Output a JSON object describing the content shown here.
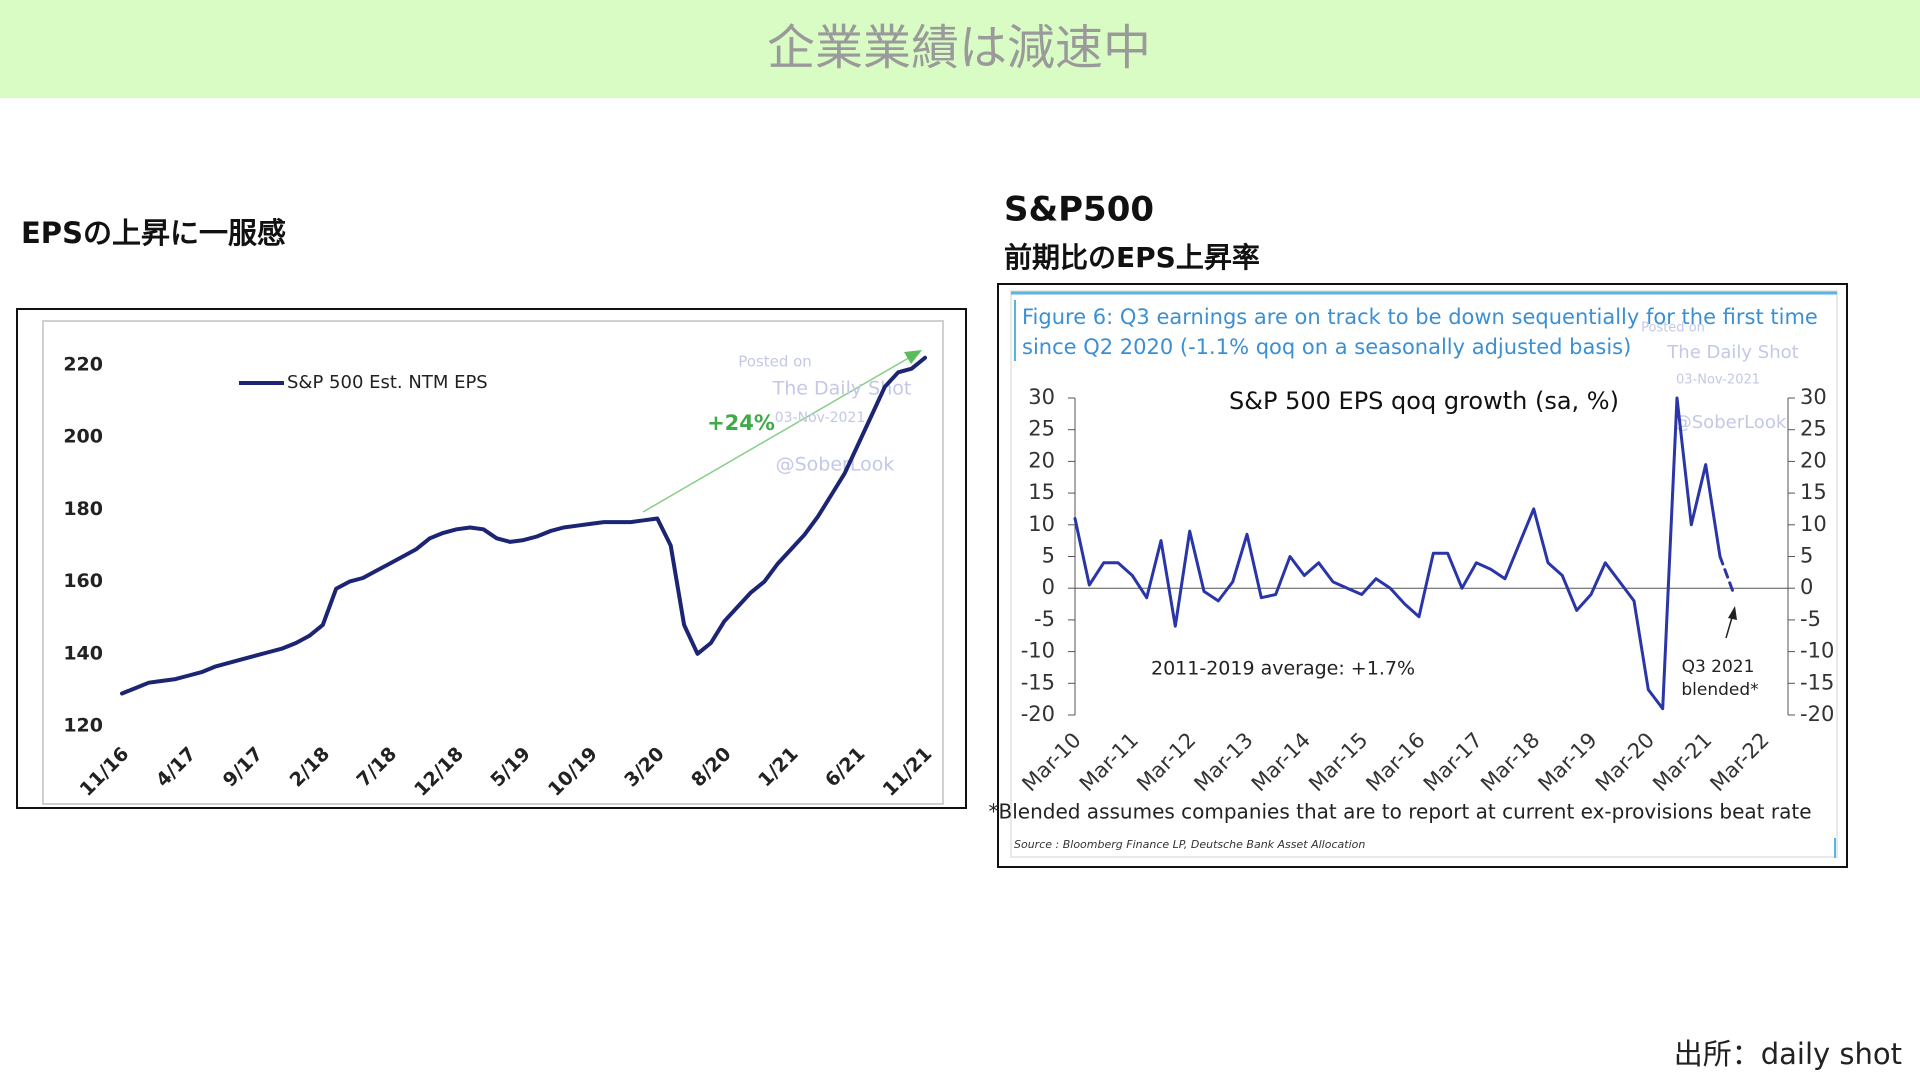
{
  "header": {
    "title": "企業業績は減速中"
  },
  "captions": {
    "left": "EPSの上昇に一服感",
    "right_title": "S&P500",
    "right_subtitle": "前期比のEPS上昇率"
  },
  "source": "出所：daily shot",
  "chart_data": [
    {
      "type": "line",
      "categories": [
        "11/16",
        null,
        null,
        null,
        null,
        "4/17",
        null,
        null,
        null,
        null,
        "9/17",
        null,
        null,
        null,
        null,
        "2/18",
        null,
        null,
        null,
        null,
        "7/18",
        null,
        null,
        null,
        null,
        "12/18",
        null,
        null,
        null,
        null,
        "5/19",
        null,
        null,
        null,
        null,
        "10/19",
        null,
        null,
        null,
        null,
        "3/20",
        null,
        null,
        null,
        null,
        "8/20",
        null,
        null,
        null,
        null,
        "1/21",
        null,
        null,
        null,
        null,
        "6/21",
        null,
        null,
        null,
        null,
        "11/21"
      ],
      "series": [
        {
          "name": "S&P 500 Est. NTM EPS",
          "color": "#1b2573",
          "values": [
            129,
            130.5,
            132,
            132.5,
            133,
            134,
            135,
            136.5,
            137.5,
            138.5,
            139.5,
            140.5,
            141.5,
            143,
            145,
            148,
            158,
            160,
            161,
            163,
            165,
            167,
            169,
            172,
            173.5,
            174.5,
            175,
            174.5,
            172,
            171,
            171.5,
            172.5,
            174,
            175,
            175.5,
            176,
            176.5,
            176.5,
            176.5,
            177,
            177.5,
            170,
            148,
            140,
            143,
            149,
            153,
            157,
            160,
            165,
            169,
            173,
            178,
            184,
            190,
            198,
            206,
            214,
            218,
            219,
            222
          ]
        }
      ],
      "ylim": [
        120,
        225
      ],
      "yticks": [
        120,
        140,
        160,
        180,
        200,
        220
      ],
      "grid": false,
      "annotations": [
        "+24%"
      ],
      "watermark": [
        "Posted on",
        "The Daily Shot",
        "03-Nov-2021",
        "@SoberLook"
      ]
    },
    {
      "type": "line",
      "caption": [
        "Figure 6: Q3 earnings are on track to be down sequentially for the first time",
        "since Q2 2020 (-1.1% qoq on a seasonally adjusted basis)"
      ],
      "title": "S&P 500 EPS qoq growth (sa, %)",
      "categories": [
        "Mar-10",
        null,
        null,
        null,
        "Mar-11",
        null,
        null,
        null,
        "Mar-12",
        null,
        null,
        null,
        "Mar-13",
        null,
        null,
        null,
        "Mar-14",
        null,
        null,
        null,
        "Mar-15",
        null,
        null,
        null,
        "Mar-16",
        null,
        null,
        null,
        "Mar-17",
        null,
        null,
        null,
        "Mar-18",
        null,
        null,
        null,
        "Mar-19",
        null,
        null,
        null,
        "Mar-20",
        null,
        null,
        null,
        "Mar-21",
        null,
        null,
        null,
        "Mar-22"
      ],
      "series": [
        {
          "color": "#2a35a8",
          "values": [
            11,
            0.5,
            4,
            4,
            2,
            -1.5,
            7.5,
            -6,
            9,
            -0.5,
            -2,
            1,
            8.5,
            -1.5,
            -1,
            5,
            2,
            4,
            1,
            0,
            -1,
            1.5,
            0,
            -2.5,
            -4.5,
            5.5,
            5.5,
            0,
            4,
            3,
            1.5,
            7,
            12.5,
            4,
            2,
            -3.5,
            -1,
            4,
            1,
            -2,
            -16,
            -19,
            30,
            10,
            19.5,
            5,
            null,
            null,
            null
          ]
        },
        {
          "color": "#2a35a8",
          "dash": true,
          "values": [
            null,
            null,
            null,
            null,
            null,
            null,
            null,
            null,
            null,
            null,
            null,
            null,
            null,
            null,
            null,
            null,
            null,
            null,
            null,
            null,
            null,
            null,
            null,
            null,
            null,
            null,
            null,
            null,
            null,
            null,
            null,
            null,
            null,
            null,
            null,
            null,
            null,
            null,
            null,
            null,
            null,
            null,
            null,
            null,
            null,
            5,
            -1.1,
            null,
            null
          ]
        }
      ],
      "ylim": [
        -20,
        30
      ],
      "yticks": [
        -20,
        -15,
        -10,
        -5,
        0,
        5,
        10,
        15,
        20,
        25,
        30
      ],
      "y2lim": [
        -20,
        30
      ],
      "y2ticks": [
        -20,
        -15,
        -10,
        -5,
        0,
        5,
        10,
        15,
        20,
        25,
        30
      ],
      "grid": false,
      "annotations": [
        "2011-2019 average: +1.7%",
        "Q3 2021",
        "blended*"
      ],
      "footnote": "*Blended assumes companies that are to report at current ex-provisions beat rate",
      "source": "Source : Bloomberg Finance LP, Deutsche Bank Asset Allocation",
      "watermark": [
        "Posted on",
        "The Daily Shot",
        "03-Nov-2021",
        "@SoberLook"
      ]
    }
  ]
}
